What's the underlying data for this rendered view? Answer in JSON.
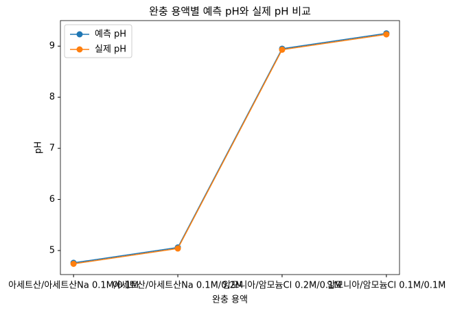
{
  "chart_data": {
    "type": "line",
    "title": "완충 용액별 예측 pH와 실제 pH 비교",
    "x_label": "완충 용액",
    "y_label": "pH",
    "categories": [
      "아세트산/아세트산Na 0.1M/0.1M",
      "아세트산/아세트산Na 0.1M/0.2M",
      "암모니아/암모늄Cl 0.2M/0.1M",
      "암모니아/암모늄Cl 0.1M/0.1M"
    ],
    "series": [
      {
        "name": "예측 pH",
        "color": "#1f77b4",
        "values": [
          4.76,
          5.06,
          8.95,
          9.25
        ]
      },
      {
        "name": "실제 pH",
        "color": "#ff7f0e",
        "values": [
          4.74,
          5.04,
          8.93,
          9.23
        ]
      }
    ],
    "ylim": [
      4.53,
      9.5
    ],
    "yticks": [
      5,
      6,
      7,
      8,
      9
    ],
    "grid": false,
    "legend": "upper left"
  }
}
